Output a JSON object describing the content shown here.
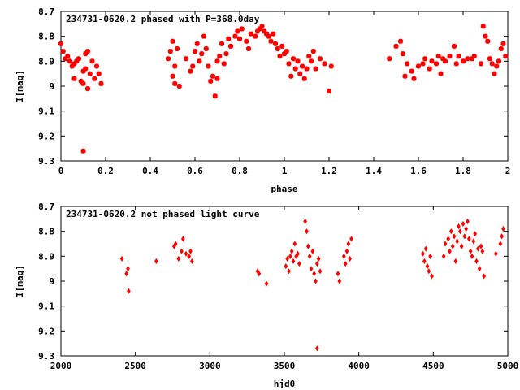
{
  "chart_data": [
    {
      "type": "scatter",
      "title": "234731-0620.2 phased with P=368.0day",
      "xlabel": "phase",
      "ylabel": "I[mag]",
      "xlim": [
        0,
        2
      ],
      "ylim": [
        8.7,
        9.3
      ],
      "y_inverted": true,
      "xticks": [
        "0",
        "0.2",
        "0.4",
        "0.6",
        "0.8",
        "1",
        "1.2",
        "1.4",
        "1.6",
        "1.8",
        "2"
      ],
      "yticks": [
        "8.7",
        "8.8",
        "8.9",
        "9",
        "9.1",
        "9.2",
        "9.3"
      ],
      "grid": false,
      "marker_color": "#ff0000",
      "marker": "star",
      "x": [
        0.0,
        0.01,
        0.02,
        0.03,
        0.04,
        0.05,
        0.06,
        0.06,
        0.07,
        0.08,
        0.09,
        0.1,
        0.1,
        0.11,
        0.11,
        0.12,
        0.12,
        0.13,
        0.14,
        0.15,
        0.16,
        0.17,
        0.18,
        0.1,
        0.48,
        0.49,
        0.5,
        0.5,
        0.51,
        0.51,
        0.52,
        0.53,
        0.56,
        0.58,
        0.59,
        0.6,
        0.61,
        0.62,
        0.63,
        0.64,
        0.65,
        0.66,
        0.67,
        0.68,
        0.69,
        0.7,
        0.7,
        0.71,
        0.72,
        0.73,
        0.74,
        0.75,
        0.76,
        0.78,
        0.79,
        0.8,
        0.81,
        0.83,
        0.84,
        0.85,
        0.87,
        0.88,
        0.89,
        0.9,
        0.91,
        0.92,
        0.93,
        0.94,
        0.95,
        0.96,
        0.97,
        0.98,
        0.99,
        1.0,
        1.01,
        1.02,
        1.03,
        1.04,
        1.05,
        1.06,
        1.07,
        1.08,
        1.09,
        1.1,
        1.11,
        1.12,
        1.13,
        1.14,
        1.16,
        1.18,
        1.2,
        1.21,
        1.47,
        1.5,
        1.52,
        1.53,
        1.54,
        1.55,
        1.57,
        1.58,
        1.6,
        1.62,
        1.63,
        1.65,
        1.66,
        1.68,
        1.69,
        1.7,
        1.71,
        1.72,
        1.74,
        1.76,
        1.77,
        1.78,
        1.8,
        1.82,
        1.84,
        1.85,
        1.88,
        1.89,
        1.9,
        1.91,
        1.92,
        1.93,
        1.94,
        1.95,
        1.96,
        1.97,
        1.98,
        1.99
      ],
      "y": [
        8.83,
        8.86,
        8.89,
        8.88,
        8.9,
        8.92,
        8.91,
        8.97,
        8.9,
        8.89,
        8.98,
        8.94,
        8.99,
        8.87,
        8.93,
        8.86,
        9.01,
        8.95,
        8.9,
        8.97,
        8.92,
        8.95,
        8.99,
        9.26,
        8.89,
        8.86,
        8.96,
        8.82,
        8.99,
        8.92,
        8.85,
        9.0,
        8.89,
        8.94,
        8.92,
        8.86,
        8.83,
        8.9,
        8.87,
        8.8,
        8.85,
        8.92,
        8.98,
        8.96,
        9.04,
        8.9,
        8.97,
        8.88,
        8.83,
        8.91,
        8.87,
        8.81,
        8.84,
        8.8,
        8.78,
        8.81,
        8.77,
        8.82,
        8.85,
        8.79,
        8.8,
        8.78,
        8.77,
        8.76,
        8.78,
        8.79,
        8.8,
        8.82,
        8.79,
        8.83,
        8.85,
        8.88,
        8.84,
        8.87,
        8.86,
        8.91,
        8.96,
        8.89,
        8.93,
        8.9,
        8.95,
        8.92,
        8.97,
        8.93,
        8.88,
        8.9,
        8.86,
        8.93,
        8.89,
        8.91,
        9.02,
        8.92,
        8.89,
        8.84,
        8.82,
        8.87,
        8.96,
        8.91,
        8.94,
        8.97,
        8.92,
        8.91,
        8.89,
        8.93,
        8.9,
        8.91,
        8.88,
        8.95,
        8.89,
        8.9,
        8.88,
        8.84,
        8.91,
        8.88,
        8.9,
        8.89,
        8.89,
        8.88,
        8.91,
        8.76,
        8.8,
        8.82,
        8.89,
        8.91,
        8.95,
        8.92,
        8.9,
        8.85,
        8.83,
        8.88
      ]
    },
    {
      "type": "scatter",
      "title": "234731-0620.2 not phased light curve",
      "xlabel": "hjd0",
      "ylabel": "I[mag]",
      "xlim": [
        2000,
        5000
      ],
      "ylim": [
        8.7,
        9.3
      ],
      "y_inverted": true,
      "xticks": [
        "2000",
        "2500",
        "3000",
        "3500",
        "4000",
        "4500",
        "5000"
      ],
      "yticks": [
        "8.7",
        "8.8",
        "8.9",
        "9",
        "9.1",
        "9.2",
        "9.3"
      ],
      "grid": false,
      "marker_color": "#ff0000",
      "marker": "diamond",
      "x": [
        2410,
        2440,
        2450,
        2455,
        2640,
        2760,
        2770,
        2790,
        2810,
        2820,
        2840,
        2860,
        2870,
        2880,
        3320,
        3330,
        3380,
        3510,
        3520,
        3530,
        3540,
        3550,
        3560,
        3570,
        3580,
        3590,
        3600,
        3640,
        3650,
        3660,
        3670,
        3680,
        3690,
        3700,
        3710,
        3720,
        3730,
        3740,
        3720,
        3860,
        3870,
        3900,
        3910,
        3920,
        3930,
        3940,
        3950,
        4430,
        4440,
        4450,
        4460,
        4470,
        4480,
        4490,
        4570,
        4580,
        4600,
        4610,
        4620,
        4630,
        4640,
        4650,
        4660,
        4670,
        4680,
        4690,
        4700,
        4710,
        4720,
        4730,
        4740,
        4750,
        4760,
        4770,
        4780,
        4790,
        4800,
        4810,
        4820,
        4830,
        4840,
        4920,
        4950,
        4960,
        4970
      ],
      "y": [
        8.91,
        8.97,
        8.95,
        9.04,
        8.92,
        8.86,
        8.85,
        8.91,
        8.88,
        8.83,
        8.89,
        8.9,
        8.88,
        8.92,
        8.96,
        8.97,
        9.01,
        8.94,
        8.91,
        8.96,
        8.9,
        8.88,
        8.92,
        8.85,
        8.9,
        8.89,
        8.93,
        8.76,
        8.8,
        8.86,
        8.9,
        8.95,
        8.88,
        8.97,
        9.0,
        8.93,
        8.91,
        8.96,
        9.27,
        8.97,
        9.0,
        8.9,
        8.93,
        8.88,
        8.85,
        8.91,
        8.83,
        8.89,
        8.92,
        8.87,
        8.94,
        8.96,
        8.9,
        8.98,
        8.9,
        8.85,
        8.83,
        8.88,
        8.8,
        8.86,
        8.82,
        8.92,
        8.84,
        8.78,
        8.8,
        8.86,
        8.77,
        8.82,
        8.79,
        8.76,
        8.83,
        8.88,
        8.9,
        8.84,
        8.81,
        8.92,
        8.87,
        8.95,
        8.86,
        8.88,
        8.98,
        8.89,
        8.85,
        8.82,
        8.79
      ]
    }
  ]
}
